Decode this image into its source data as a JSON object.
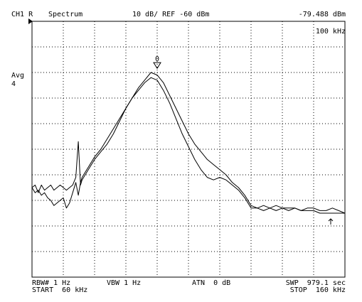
{
  "header": {
    "channel": "CH1 R",
    "mode": "Spectrum",
    "scale_ref": "10 dB/ REF -60 dBm",
    "marker_readout": "-79.488 dBm",
    "marker_freq": "100 kHz"
  },
  "side": {
    "avg_label": "Avg",
    "avg_count": "4"
  },
  "marker": {
    "label": "0"
  },
  "footer": {
    "rbw": "RBW# 1 Hz",
    "vbw": "VBW 1 Hz",
    "atn": "ATN  0 dB",
    "swp": "SWP  979.1 sec",
    "start": "START  60 kHz",
    "stop": "STOP  160 kHz"
  },
  "chart_data": {
    "type": "line",
    "x_start_khz": 60,
    "x_stop_khz": 160,
    "ref_level_dbm": -60,
    "scale_db_per_div": 10,
    "ylim": [
      -160,
      -60
    ],
    "grid": true,
    "marker": {
      "x_khz": 100,
      "y_dbm": -79.488,
      "label": "0"
    },
    "series": [
      {
        "x": [
          60,
          61,
          62,
          63,
          64,
          65,
          66,
          67,
          68,
          69,
          70,
          71,
          72,
          73,
          74,
          74.8,
          75.5,
          76,
          77,
          78,
          79,
          80,
          82,
          84,
          86,
          88,
          90,
          92,
          94,
          96,
          98,
          100,
          102,
          104,
          106,
          108,
          110,
          112,
          114,
          116,
          118,
          120,
          122,
          124,
          126,
          128,
          130,
          132,
          134,
          136,
          138,
          140,
          142,
          144,
          146,
          148,
          150,
          152,
          154,
          156,
          158,
          160
        ],
        "y": [
          -125,
          -124,
          -127,
          -124,
          -126,
          -125,
          -124,
          -126,
          -125,
          -124,
          -125,
          -126,
          -125,
          -124,
          -121,
          -107,
          -124,
          -122,
          -120,
          -118,
          -116,
          -114,
          -111,
          -108,
          -104,
          -99,
          -94,
          -90,
          -86,
          -83,
          -80,
          -81,
          -84,
          -89,
          -94,
          -99,
          -104,
          -108,
          -111,
          -114,
          -116,
          -118,
          -120,
          -123,
          -125,
          -128,
          -132,
          -133,
          -134,
          -133,
          -134,
          -133,
          -134,
          -133,
          -134,
          -134,
          -134,
          -135,
          -135,
          -135,
          -135,
          -135
        ]
      },
      {
        "x": [
          60,
          61,
          62,
          63,
          64,
          65,
          66,
          67,
          68,
          69,
          70,
          71,
          72,
          73,
          74,
          74.8,
          75.5,
          76,
          77,
          78,
          79,
          80,
          82,
          84,
          86,
          88,
          90,
          92,
          94,
          96,
          98,
          100,
          102,
          104,
          106,
          108,
          110,
          112,
          114,
          116,
          118,
          120,
          122,
          124,
          126,
          128,
          130,
          132,
          134,
          136,
          138,
          140,
          142,
          144,
          146,
          148,
          150,
          152,
          154,
          156,
          158,
          160
        ],
        "y": [
          -125,
          -127,
          -126,
          -128,
          -127,
          -129,
          -130,
          -132,
          -131,
          -130,
          -129,
          -133,
          -131,
          -127,
          -123,
          -128,
          -123,
          -121,
          -119,
          -117,
          -115,
          -113,
          -110,
          -106,
          -102,
          -98,
          -94,
          -90,
          -87,
          -84,
          -82,
          -83,
          -87,
          -92,
          -98,
          -104,
          -109,
          -114,
          -118,
          -121,
          -122,
          -121,
          -122,
          -124,
          -126,
          -129,
          -133,
          -133,
          -132,
          -133,
          -132,
          -133,
          -133,
          -133,
          -134,
          -133,
          -133,
          -134,
          -134,
          -133,
          -134,
          -135
        ]
      }
    ]
  }
}
